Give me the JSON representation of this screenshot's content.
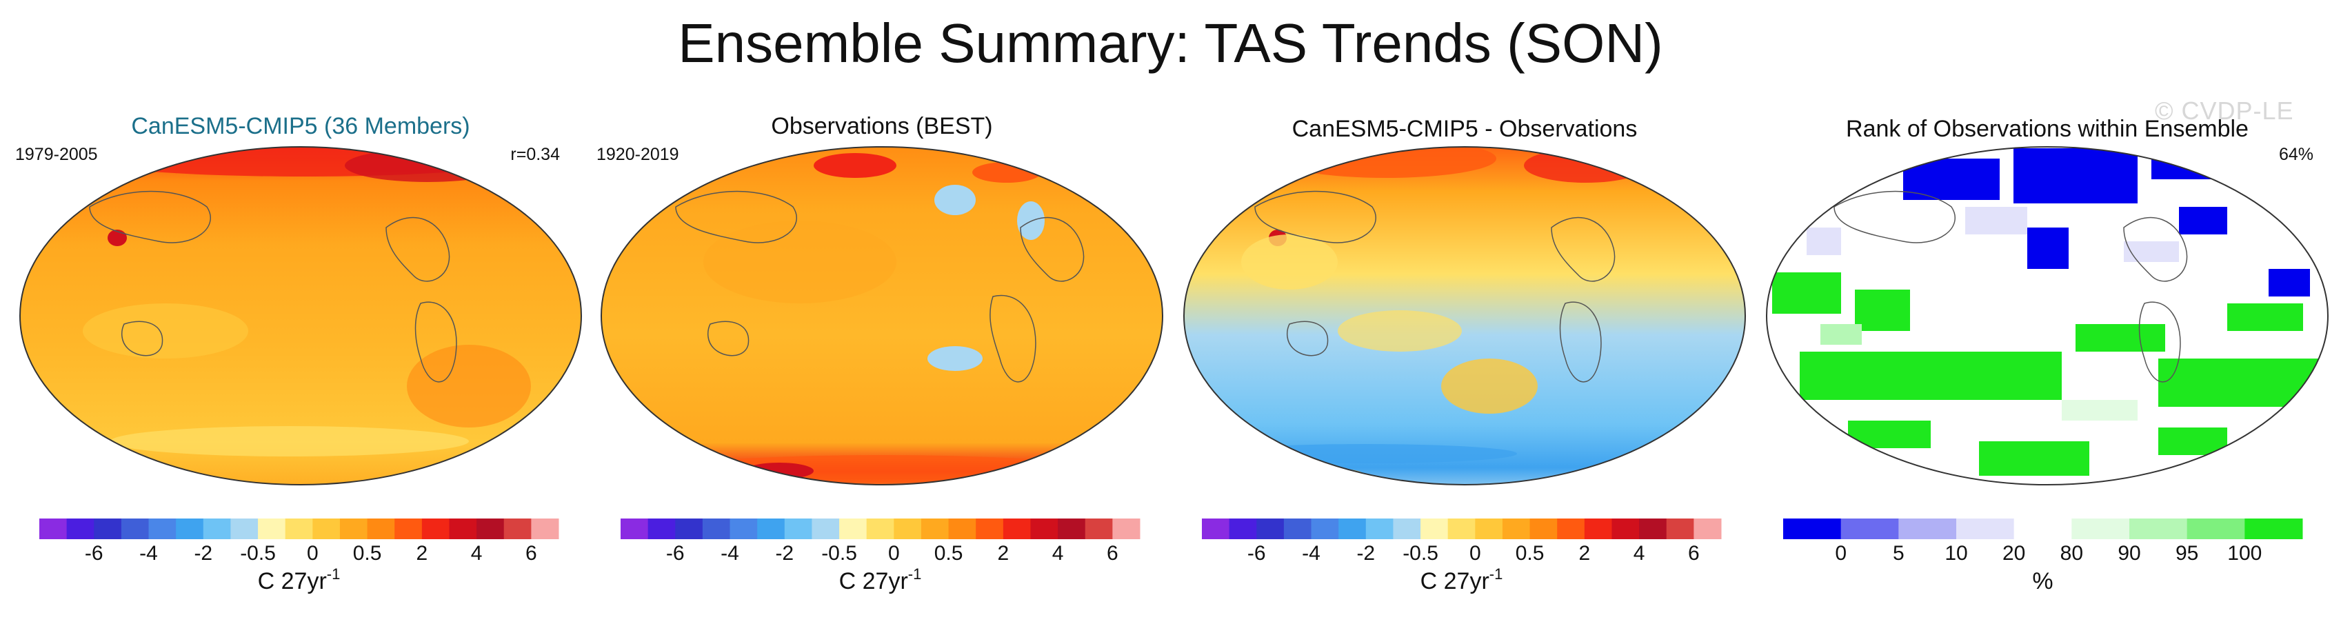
{
  "figure": {
    "title": "Ensemble Summary: TAS Trends (SON)",
    "watermark": "© CVDP-LE"
  },
  "colors": {
    "title_teal": "#1b6f8a",
    "land_outline": "#555555",
    "diverging_scale": [
      "#8a2be2",
      "#4b1ee0",
      "#3333cc",
      "#3f5fd8",
      "#4a86e8",
      "#3fa3ef",
      "#6ec3f5",
      "#a9d7f2",
      "#fff6b0",
      "#ffe066",
      "#ffc83a",
      "#ffa91f",
      "#ff8a12",
      "#ff5a10",
      "#f22615",
      "#d1101c",
      "#b30f25",
      "#d9413f",
      "#f7a5a5"
    ],
    "rank_scale": [
      "#0000ee",
      "#6b6bf0",
      "#b0b0f5",
      "#e2e2fa",
      "#ffffff",
      "#e2fbe2",
      "#b5f7b5",
      "#7ef07e",
      "#1ee81e"
    ]
  },
  "chart_data": [
    {
      "type": "heatmap",
      "title": "CanESM5-CMIP5 (36 Members)",
      "left_label": "1979-2005",
      "right_label": "r=0.34",
      "projection": "robinson",
      "colorbar": {
        "tick_labels": [
          "-6",
          "-4",
          "-2",
          "-0.5",
          "0",
          "0.5",
          "2",
          "4",
          "6"
        ],
        "unit": "C 27yr",
        "unit_sup": "-1",
        "n_colors": 19
      }
    },
    {
      "type": "heatmap",
      "title": "Observations (BEST)",
      "left_label": "1920-2019",
      "right_label": "",
      "projection": "robinson",
      "colorbar": {
        "tick_labels": [
          "-6",
          "-4",
          "-2",
          "-0.5",
          "0",
          "0.5",
          "2",
          "4",
          "6"
        ],
        "unit": "C 27yr",
        "unit_sup": "-1",
        "n_colors": 19
      }
    },
    {
      "type": "heatmap",
      "title": "CanESM5-CMIP5 - Observations",
      "left_label": "",
      "right_label": "",
      "projection": "robinson",
      "colorbar": {
        "tick_labels": [
          "-6",
          "-4",
          "-2",
          "-0.5",
          "0",
          "0.5",
          "2",
          "4",
          "6"
        ],
        "unit": "C 27yr",
        "unit_sup": "-1",
        "n_colors": 19
      }
    },
    {
      "type": "heatmap",
      "title": "Rank of Observations within Ensemble",
      "left_label": "",
      "right_label": "64%",
      "projection": "robinson",
      "colorbar": {
        "tick_labels": [
          "0",
          "5",
          "10",
          "20",
          "80",
          "90",
          "95",
          "100"
        ],
        "unit": "%",
        "unit_sup": "",
        "n_colors": 9
      }
    }
  ]
}
